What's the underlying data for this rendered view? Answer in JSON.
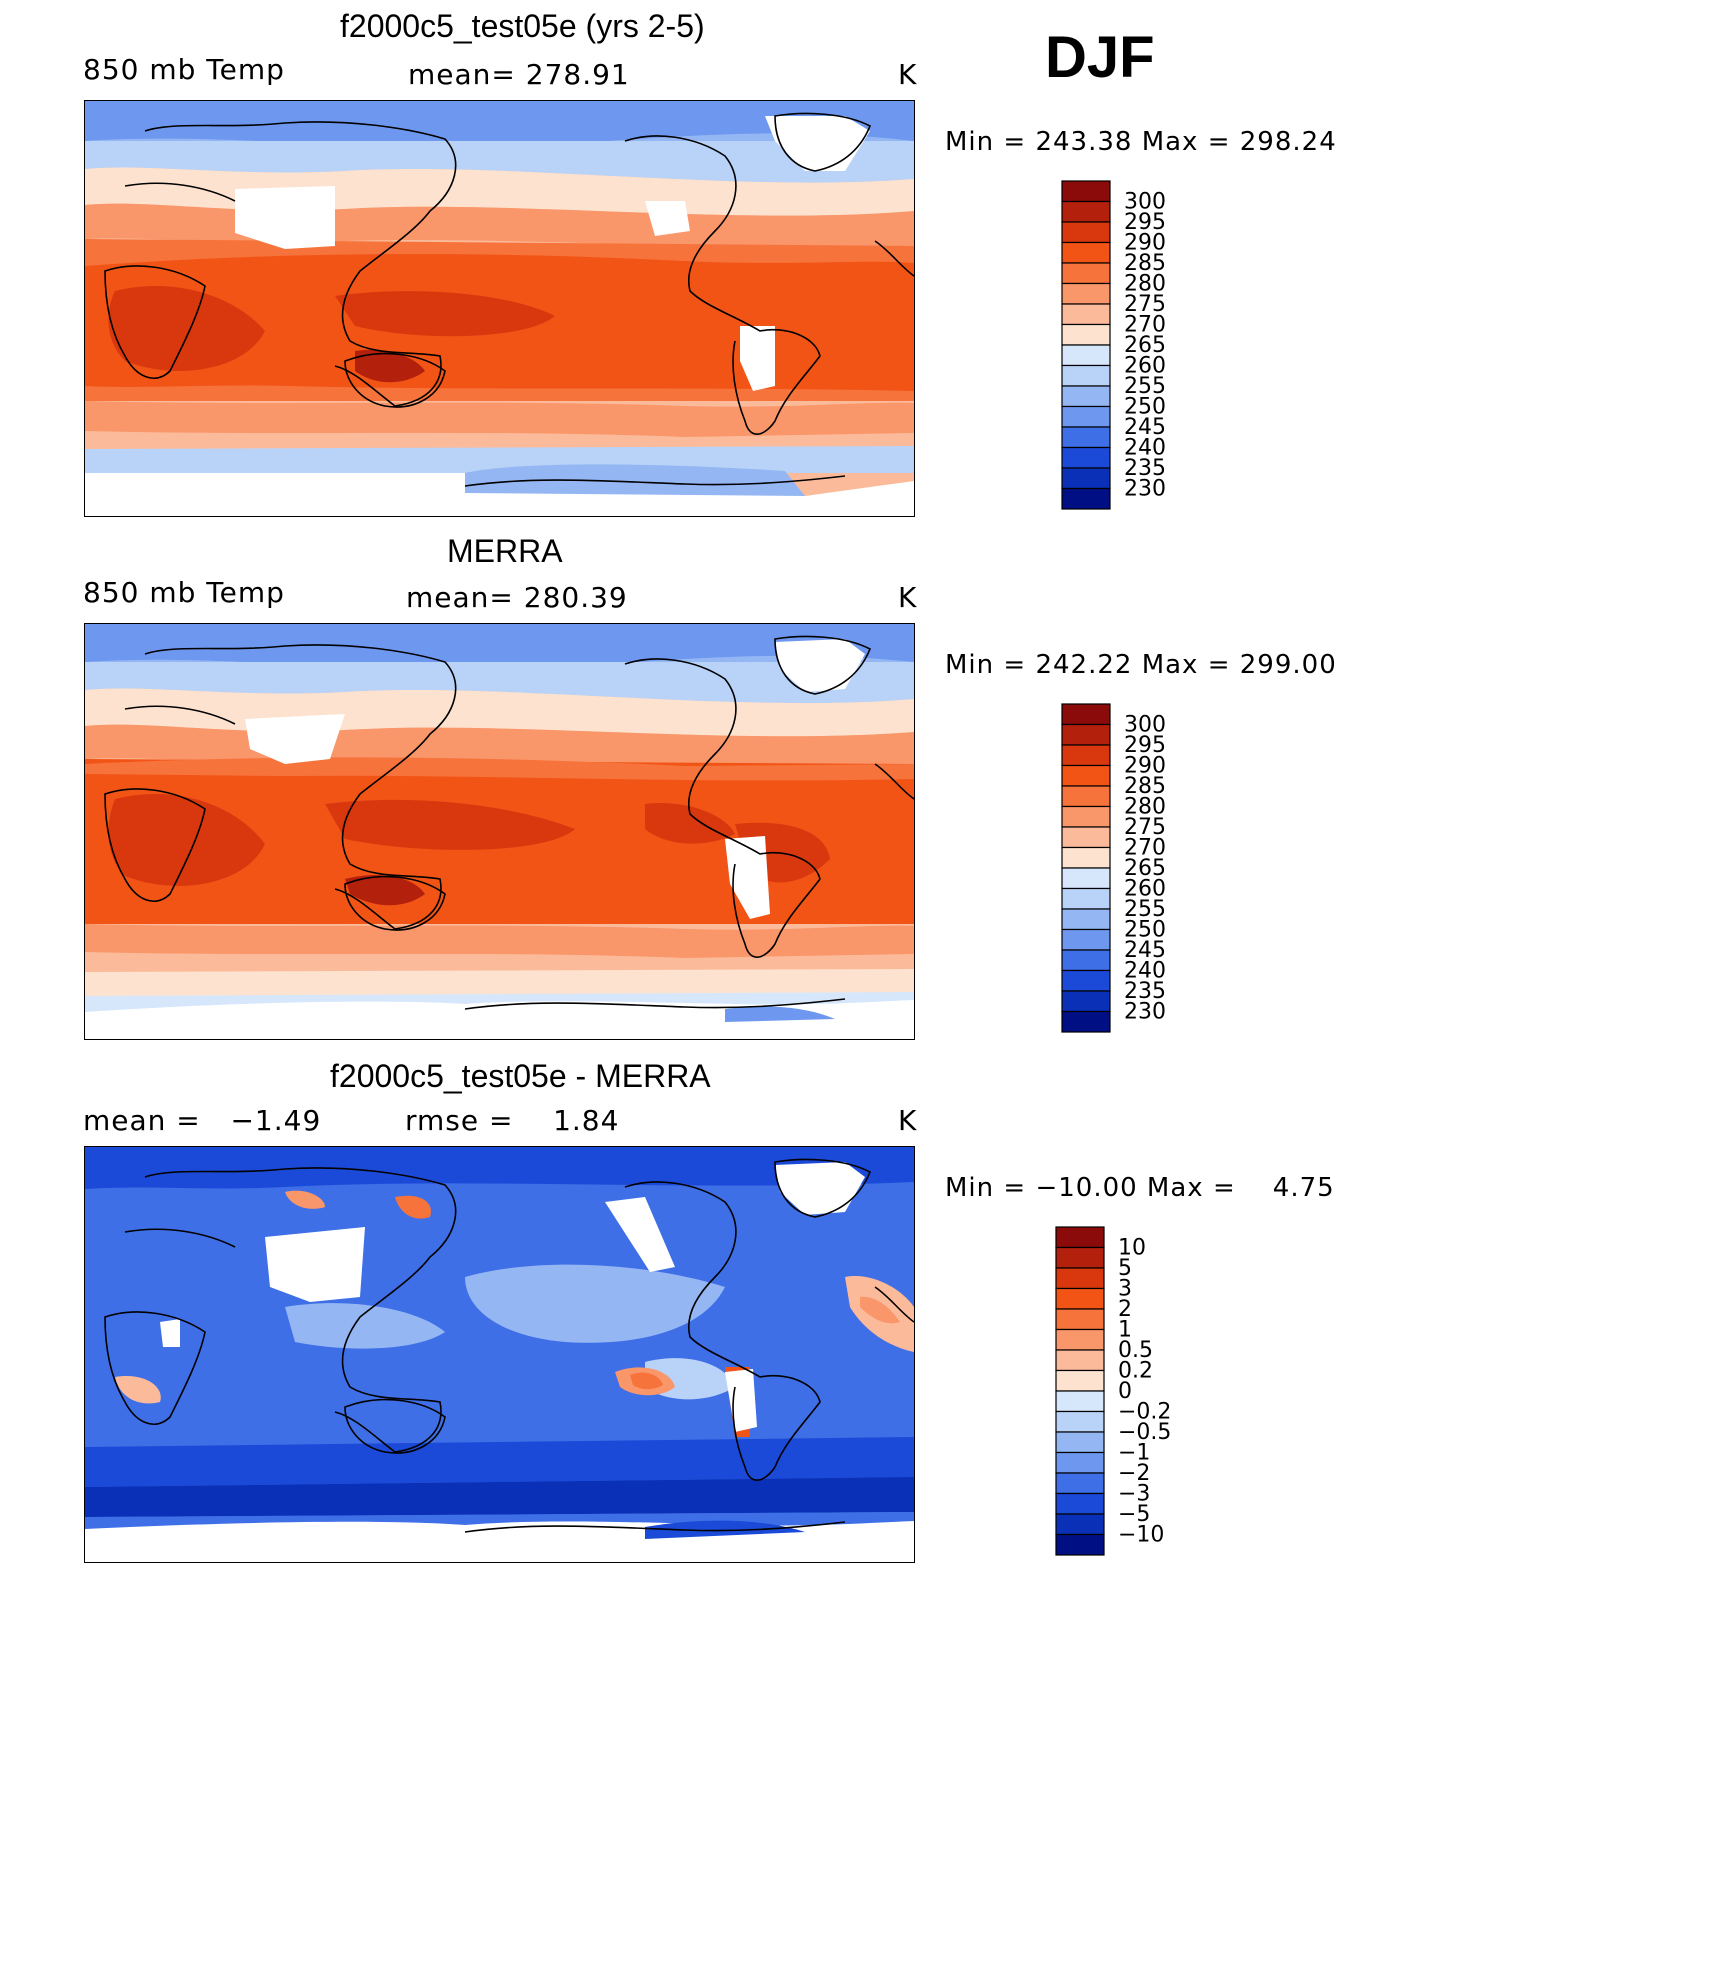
{
  "season": "DJF",
  "panels": [
    {
      "title": "f2000c5_test05e (yrs 2-5)",
      "left_label": "850 mb Temp",
      "center_label": "mean= 278.91",
      "units": "K",
      "minmax": "Min = 243.38 Max = 298.24"
    },
    {
      "title": "MERRA",
      "left_label": "850 mb Temp",
      "center_label": "mean= 280.39",
      "units": "K",
      "minmax": "Min = 242.22 Max = 299.00"
    },
    {
      "title": "f2000c5_test05e - MERRA",
      "left_label": "mean =   −1.49",
      "center_label": "rmse =    1.84",
      "units": "K",
      "minmax": "Min = −10.00 Max =    4.75"
    }
  ],
  "colorbars": {
    "temperature": {
      "labels": [
        "300",
        "295",
        "290",
        "285",
        "280",
        "275",
        "270",
        "265",
        "260",
        "255",
        "250",
        "245",
        "240",
        "235",
        "230"
      ],
      "colors": [
        "#8b0a0a",
        "#b3200c",
        "#d9380f",
        "#f25416",
        "#f7733c",
        "#f9966a",
        "#fbbb9a",
        "#fde3cf",
        "#d7e7fb",
        "#b9d3f8",
        "#94b7f4",
        "#6e98ef",
        "#3f6fe6",
        "#1c4ad8",
        "#0930b6",
        "#000f84"
      ]
    },
    "difference": {
      "labels": [
        "10",
        "5",
        "3",
        "2",
        "1",
        "0.5",
        "0.2",
        "0",
        "−0.2",
        "−0.5",
        "−1",
        "−2",
        "−3",
        "−5",
        "−10"
      ],
      "colors": [
        "#8b0a0a",
        "#b3200c",
        "#d9380f",
        "#f25416",
        "#f7733c",
        "#f9966a",
        "#fbbb9a",
        "#fde3cf",
        "#d7e7fb",
        "#b9d3f8",
        "#94b7f4",
        "#6e98ef",
        "#3f6fe6",
        "#1c4ad8",
        "#0930b6",
        "#000f84"
      ]
    }
  }
}
